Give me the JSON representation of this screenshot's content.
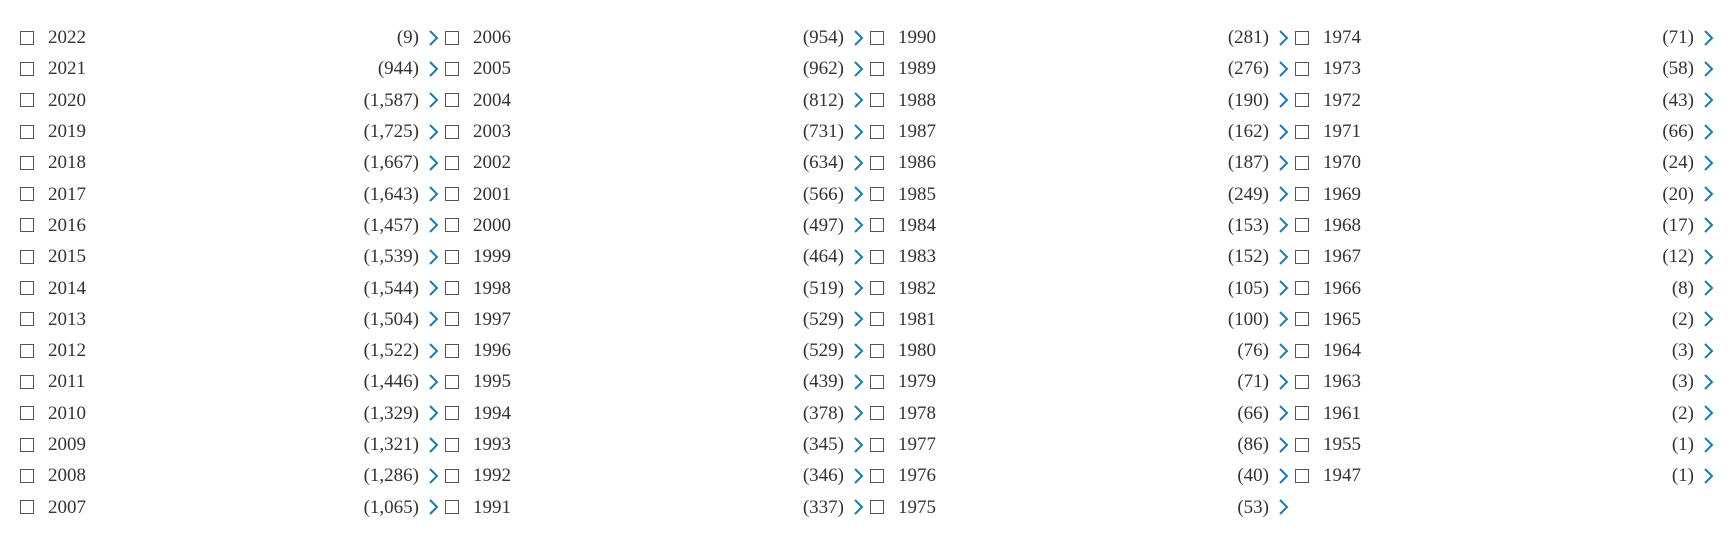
{
  "colors": {
    "text": "#333333",
    "checkbox_border": "#555555",
    "chevron": "#1a7ab8"
  },
  "icons": {
    "checkbox": "checkbox-icon",
    "chevron": "chevron-right-icon"
  },
  "year_filter": {
    "columns": [
      [
        {
          "year": "2022",
          "count": "(9)"
        },
        {
          "year": "2021",
          "count": "(944)"
        },
        {
          "year": "2020",
          "count": "(1,587)"
        },
        {
          "year": "2019",
          "count": "(1,725)"
        },
        {
          "year": "2018",
          "count": "(1,667)"
        },
        {
          "year": "2017",
          "count": "(1,643)"
        },
        {
          "year": "2016",
          "count": "(1,457)"
        },
        {
          "year": "2015",
          "count": "(1,539)"
        },
        {
          "year": "2014",
          "count": "(1,544)"
        },
        {
          "year": "2013",
          "count": "(1,504)"
        },
        {
          "year": "2012",
          "count": "(1,522)"
        },
        {
          "year": "2011",
          "count": "(1,446)"
        },
        {
          "year": "2010",
          "count": "(1,329)"
        },
        {
          "year": "2009",
          "count": "(1,321)"
        },
        {
          "year": "2008",
          "count": "(1,286)"
        },
        {
          "year": "2007",
          "count": "(1,065)"
        }
      ],
      [
        {
          "year": "2006",
          "count": "(954)"
        },
        {
          "year": "2005",
          "count": "(962)"
        },
        {
          "year": "2004",
          "count": "(812)"
        },
        {
          "year": "2003",
          "count": "(731)"
        },
        {
          "year": "2002",
          "count": "(634)"
        },
        {
          "year": "2001",
          "count": "(566)"
        },
        {
          "year": "2000",
          "count": "(497)"
        },
        {
          "year": "1999",
          "count": "(464)"
        },
        {
          "year": "1998",
          "count": "(519)"
        },
        {
          "year": "1997",
          "count": "(529)"
        },
        {
          "year": "1996",
          "count": "(529)"
        },
        {
          "year": "1995",
          "count": "(439)"
        },
        {
          "year": "1994",
          "count": "(378)"
        },
        {
          "year": "1993",
          "count": "(345)"
        },
        {
          "year": "1992",
          "count": "(346)"
        },
        {
          "year": "1991",
          "count": "(337)"
        }
      ],
      [
        {
          "year": "1990",
          "count": "(281)"
        },
        {
          "year": "1989",
          "count": "(276)"
        },
        {
          "year": "1988",
          "count": "(190)"
        },
        {
          "year": "1987",
          "count": "(162)"
        },
        {
          "year": "1986",
          "count": "(187)"
        },
        {
          "year": "1985",
          "count": "(249)"
        },
        {
          "year": "1984",
          "count": "(153)"
        },
        {
          "year": "1983",
          "count": "(152)"
        },
        {
          "year": "1982",
          "count": "(105)"
        },
        {
          "year": "1981",
          "count": "(100)"
        },
        {
          "year": "1980",
          "count": "(76)"
        },
        {
          "year": "1979",
          "count": "(71)"
        },
        {
          "year": "1978",
          "count": "(66)"
        },
        {
          "year": "1977",
          "count": "(86)"
        },
        {
          "year": "1976",
          "count": "(40)"
        },
        {
          "year": "1975",
          "count": "(53)"
        }
      ],
      [
        {
          "year": "1974",
          "count": "(71)"
        },
        {
          "year": "1973",
          "count": "(58)"
        },
        {
          "year": "1972",
          "count": "(43)"
        },
        {
          "year": "1971",
          "count": "(66)"
        },
        {
          "year": "1970",
          "count": "(24)"
        },
        {
          "year": "1969",
          "count": "(20)"
        },
        {
          "year": "1968",
          "count": "(17)"
        },
        {
          "year": "1967",
          "count": "(12)"
        },
        {
          "year": "1966",
          "count": "(8)"
        },
        {
          "year": "1965",
          "count": "(2)"
        },
        {
          "year": "1964",
          "count": "(3)"
        },
        {
          "year": "1963",
          "count": "(3)"
        },
        {
          "year": "1961",
          "count": "(2)"
        },
        {
          "year": "1955",
          "count": "(1)"
        },
        {
          "year": "1947",
          "count": "(1)"
        }
      ]
    ]
  }
}
